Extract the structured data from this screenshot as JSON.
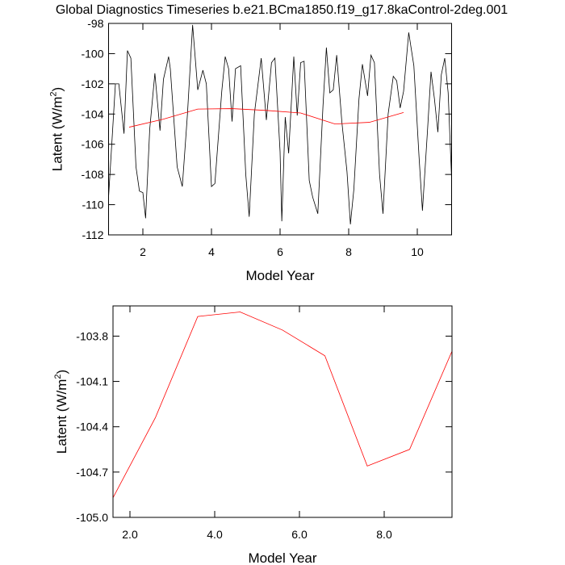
{
  "chart_data": [
    {
      "type": "line",
      "title": "Global Diagnostics Timeseries b.e21.BCma1850.f19_g17.8kaControl-2deg.001",
      "xlabel": "Model Year",
      "ylabel": [
        "Latent (W/m",
        "2",
        ")"
      ],
      "xlim": [
        1,
        11
      ],
      "xticks": [
        2,
        4,
        6,
        8,
        10
      ],
      "ylim": [
        -112,
        -98
      ],
      "yticks": [
        -112,
        -110,
        -108,
        -106,
        -104,
        -102,
        -100,
        -98
      ],
      "series": [
        {
          "color": "#000000",
          "x": [
            1.0,
            1.2,
            1.3,
            1.45,
            1.55,
            1.65,
            1.8,
            1.9,
            2.0,
            2.08,
            2.2,
            2.35,
            2.5,
            2.6,
            2.75,
            2.8,
            3.0,
            3.15,
            3.3,
            3.45,
            3.6,
            3.75,
            3.85,
            4.0,
            4.1,
            4.3,
            4.4,
            4.5,
            4.6,
            4.7,
            4.85,
            5.0,
            5.1,
            5.25,
            5.45,
            5.6,
            5.75,
            5.85,
            6.0,
            6.05,
            6.15,
            6.25,
            6.4,
            6.5,
            6.6,
            6.7,
            6.85,
            6.95,
            7.1,
            7.25,
            7.35,
            7.45,
            7.55,
            7.65,
            7.8,
            7.95,
            8.05,
            8.15,
            8.3,
            8.4,
            8.55,
            8.65,
            8.75,
            8.9,
            9.0,
            9.15,
            9.3,
            9.4,
            9.5,
            9.6,
            9.75,
            9.9,
            10.05,
            10.15,
            10.3,
            10.4,
            10.5,
            10.6,
            10.7,
            10.8,
            10.9,
            11.0
          ],
          "values": [
            -109.5,
            -102,
            -102,
            -105.3,
            -99.8,
            -100.3,
            -107.5,
            -109.1,
            -109.2,
            -110.9,
            -105,
            -101.3,
            -105.1,
            -101.7,
            -100.2,
            -101,
            -107.5,
            -108.8,
            -104,
            -98.1,
            -102.4,
            -101.1,
            -102,
            -108.8,
            -108.6,
            -102.5,
            -100.2,
            -101,
            -104.5,
            -101,
            -100.8,
            -108,
            -110.8,
            -104,
            -100.3,
            -104.4,
            -100.6,
            -100.3,
            -106.5,
            -111.1,
            -104.2,
            -106.6,
            -100.2,
            -104.1,
            -100.6,
            -100.5,
            -108.4,
            -109.5,
            -110.6,
            -103.5,
            -99.6,
            -102.6,
            -102.4,
            -100.1,
            -104.5,
            -107.8,
            -111.3,
            -109,
            -103,
            -100.7,
            -102.8,
            -100.1,
            -100.6,
            -108,
            -110.6,
            -104,
            -101.5,
            -101.8,
            -103.6,
            -102.5,
            -98.6,
            -100.8,
            -106.8,
            -110.4,
            -105,
            -101.2,
            -103,
            -105.2,
            -101.4,
            -100.3,
            -102.6,
            -108.3
          ]
        },
        {
          "color": "#ff0000",
          "x": [
            1.6,
            2.6,
            3.6,
            4.6,
            5.6,
            6.6,
            7.6,
            8.6,
            9.6
          ],
          "values": [
            -104.87,
            -104.34,
            -103.67,
            -103.64,
            -103.76,
            -103.93,
            -104.66,
            -104.55,
            -103.9
          ]
        }
      ]
    },
    {
      "type": "line",
      "xlabel": "Model Year",
      "ylabel": [
        "Latent (W/m",
        "2",
        ")"
      ],
      "xlim": [
        1.6,
        9.6
      ],
      "xticks": [
        {
          "value": 2,
          "label": "2.0"
        },
        {
          "value": 4,
          "label": "4.0"
        },
        {
          "value": 6,
          "label": "6.0"
        },
        {
          "value": 8,
          "label": "8.0"
        }
      ],
      "ylim": [
        -105,
        -103.6
      ],
      "yticks": [
        {
          "value": -105,
          "label": "-105.0"
        },
        -104.7,
        -104.4,
        -104.1,
        -103.8
      ],
      "series": [
        {
          "color": "#ff0000",
          "x": [
            1.6,
            2.6,
            3.6,
            4.6,
            5.6,
            6.6,
            7.6,
            8.6,
            9.6
          ],
          "values": [
            -104.87,
            -104.34,
            -103.67,
            -103.64,
            -103.76,
            -103.93,
            -104.66,
            -104.55,
            -103.9
          ]
        }
      ]
    }
  ]
}
